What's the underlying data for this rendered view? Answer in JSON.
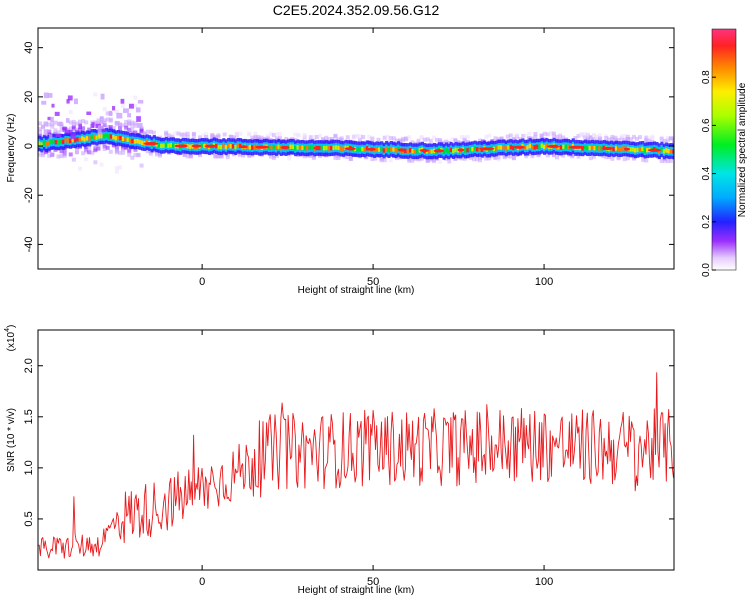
{
  "figure": {
    "title": "C2E5.2024.352.09.56.G12"
  },
  "chart_data": [
    {
      "type": "heatmap",
      "xlabel": "Height of straight line (km)",
      "ylabel": "Frequency (Hz)",
      "xlim": [
        -48,
        138
      ],
      "ylim": [
        -50,
        48
      ],
      "x_ticks": [
        "0",
        "50",
        "100"
      ],
      "y_ticks": [
        "40",
        "20",
        "0",
        "-20",
        "-40"
      ],
      "grid": false,
      "colorbar": {
        "label": "Normalized spectral amplitude",
        "range": [
          0.0,
          1.0
        ],
        "ticks": [
          "0.0",
          "0.2",
          "0.4",
          "0.6",
          "0.8"
        ]
      },
      "ridge": {
        "description_points": [
          [
            -46,
            1
          ],
          [
            -35,
            3
          ],
          [
            -28,
            4
          ],
          [
            -20,
            2
          ],
          [
            -10,
            0
          ],
          [
            0,
            0
          ],
          [
            40,
            -1
          ],
          [
            70,
            -2
          ],
          [
            100,
            0
          ],
          [
            138,
            -2
          ]
        ]
      }
    },
    {
      "type": "line",
      "xlabel": "Height of straight line (km)",
      "ylabel": "SNR (10 * v/v)",
      "scale_label": "(x10",
      "scale_exp": "4",
      "xlim": [
        -48,
        138
      ],
      "ylim": [
        0,
        2.35
      ],
      "x_ticks": [
        "0",
        "50",
        "100"
      ],
      "y_ticks": [
        "0.5",
        "1.0",
        "1.5",
        "2.0"
      ],
      "grid": false,
      "series": [
        {
          "color": "#e8191c",
          "trend_points": [
            [
              -48,
              0.2
            ],
            [
              -30,
              0.25
            ],
            [
              -25,
              0.5
            ],
            [
              -10,
              0.65
            ],
            [
              0,
              0.8
            ],
            [
              10,
              0.95
            ],
            [
              20,
              1.15
            ],
            [
              40,
              1.18
            ],
            [
              60,
              1.2
            ],
            [
              80,
              1.2
            ],
            [
              95,
              1.25
            ],
            [
              110,
              1.2
            ],
            [
              138,
              1.2
            ]
          ]
        }
      ]
    }
  ]
}
